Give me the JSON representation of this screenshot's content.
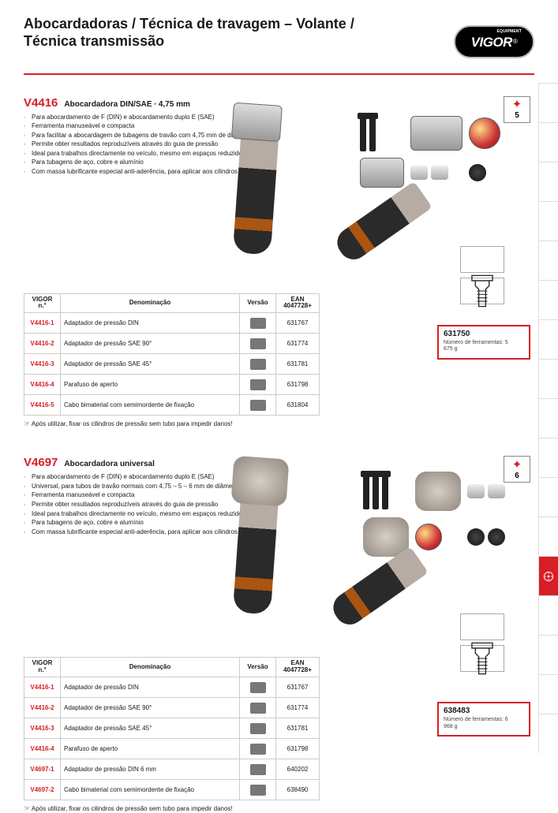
{
  "page": {
    "header_title": "Abocardadoras / Técnica de travagem – Volante / Técnica transmissão",
    "brand": "VIGOR",
    "brand_tag": "EQUIPMENT"
  },
  "colors": {
    "accent": "#d61f26",
    "rule": "#d61f26",
    "text": "#1a1a1a"
  },
  "section1": {
    "sku": "V4416",
    "title": "Abocardadora DIN/SAE ∙ 4,75 mm",
    "features": [
      "Para abocardamento de F (DIN) e abocardamento duplo E (SAE)",
      "Ferramenta manuseável e compacta",
      "Para facilitar a abocardagem de tubagens de travão com 4,75 mm de diâmetro",
      "Permite obter resultados reproduzíveis através do guia de pressão",
      "Ideal para trabalhos directamente no veículo, mesmo em espaços reduzidos",
      "Para tubagens de aço, cobre e alumínio",
      "Com massa lubrificante especial anti-aderência, para aplicar aos cilindros de pressão"
    ],
    "apos": "Após utilizar, fixar os cilindros de pressão sem tubo para impedir danos!",
    "badge_count": "5",
    "buy": {
      "ean": "631750",
      "desc": "Número de ferramentas: 5\n675 g"
    },
    "table": {
      "columns": [
        "VIGOR\nn.°",
        "Denominação",
        "Versão",
        "EAN\n4047728+"
      ],
      "rows": [
        {
          "n": "V4416-1",
          "d": "Adaptador de pressão DIN",
          "e": "631767"
        },
        {
          "n": "V4416-2",
          "d": "Adaptador de pressão SAE 90°",
          "e": "631774"
        },
        {
          "n": "V4416-3",
          "d": "Adaptador de pressão SAE 45°",
          "e": "631781"
        },
        {
          "n": "V4416-4",
          "d": "Parafuso de aperto",
          "e": "631798"
        },
        {
          "n": "V4416-5",
          "d": "Cabo bimaterial com semimordente de fixação",
          "e": "631804"
        }
      ]
    }
  },
  "section2": {
    "sku": "V4697",
    "title": "Abocardadora universal",
    "features": [
      "Para abocardamento de F (DIN) e abocardamento duplo E (SAE)",
      "Universal, para tubos de travão normais com 4,75 – 5 – 6 mm de diâmetro",
      "Ferramenta manuseável e compacta",
      "Permite obter resultados reproduzíveis através do guia de pressão",
      "Ideal para trabalhos directamente no veículo, mesmo em espaços reduzidos",
      "Para tubagens de aço, cobre e alumínio",
      "Com massa lubrificante especial anti-aderência, para aplicar aos cilindros de pressão"
    ],
    "apos": "Após utilizar, fixar os cilindros de pressão sem tubo para impedir danos!",
    "badge_count": "6",
    "buy": {
      "ean": "638483",
      "desc": "Número de ferramentas: 6\n968 g"
    },
    "table": {
      "columns": [
        "VIGOR\nn.°",
        "Denominação",
        "Versão",
        "EAN\n4047728+"
      ],
      "rows": [
        {
          "n": "V4416-1",
          "d": "Adaptador de pressão DIN",
          "e": "631767"
        },
        {
          "n": "V4416-2",
          "d": "Adaptador de pressão SAE 90°",
          "e": "631774"
        },
        {
          "n": "V4416-3",
          "d": "Adaptador de pressão SAE 45°",
          "e": "631781"
        },
        {
          "n": "V4416-4",
          "d": "Parafuso de aperto",
          "e": "631798"
        },
        {
          "n": "V4697-1",
          "d": "Adaptador de pressão DIN 6 mm",
          "e": "640202"
        },
        {
          "n": "V4697-2",
          "d": "Cabo bimaterial com semimordente de fixação",
          "e": "638490"
        }
      ]
    }
  },
  "tabs": {
    "active_index": 12,
    "count": 17
  }
}
